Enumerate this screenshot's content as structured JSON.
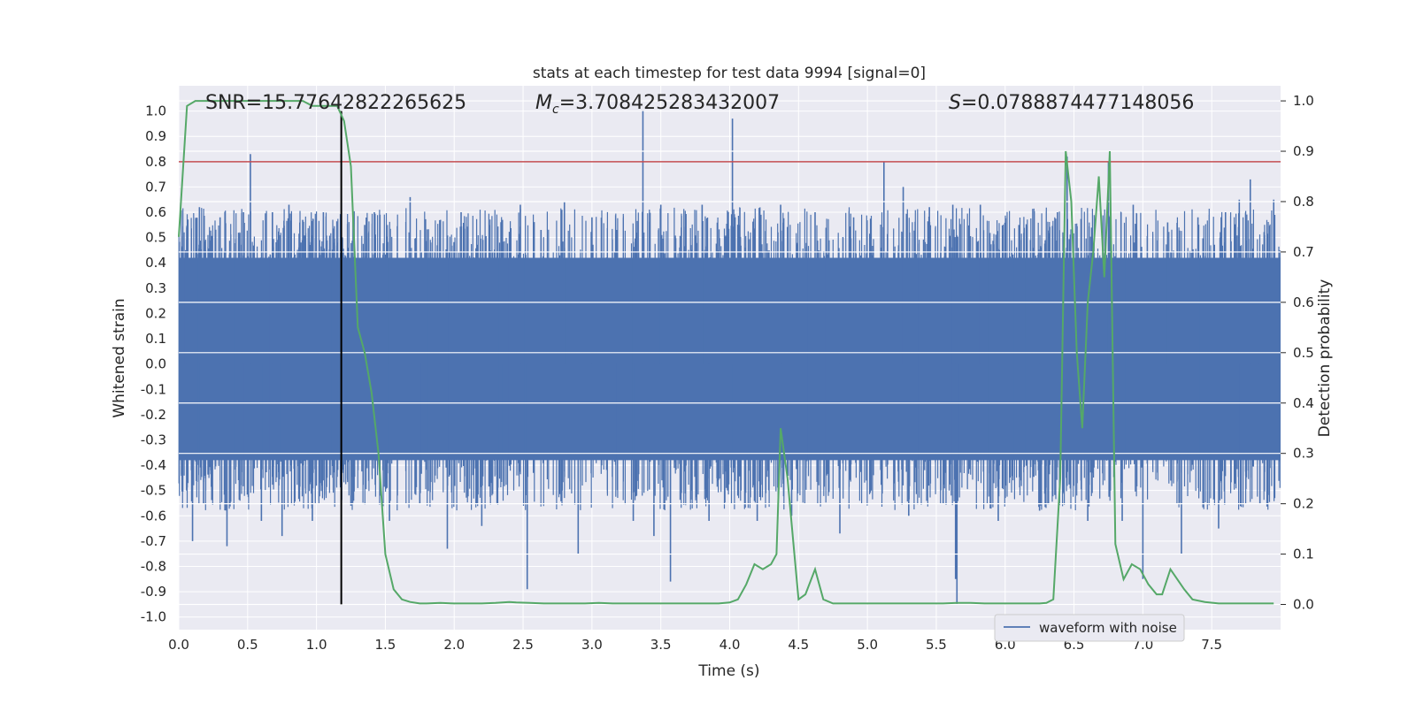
{
  "chart_data": {
    "type": "line",
    "title": "stats at each timestep for test data 9994 [signal=0]",
    "xlabel": "Time (s)",
    "ylabel_left": "Whitened strain",
    "ylabel_right": "Detection probability",
    "xlim": [
      0.0,
      8.0
    ],
    "ylim_left": [
      -1.05,
      1.1
    ],
    "ylim_right": [
      -0.05,
      1.03
    ],
    "x_ticks": [
      "0.0",
      "0.5",
      "1.0",
      "1.5",
      "2.0",
      "2.5",
      "3.0",
      "3.5",
      "4.0",
      "4.5",
      "5.0",
      "5.5",
      "6.0",
      "6.5",
      "7.0",
      "7.5"
    ],
    "y_ticks_left": [
      "1.0",
      "0.9",
      "0.8",
      "0.7",
      "0.6",
      "0.5",
      "0.4",
      "0.3",
      "0.2",
      "0.1",
      "0.0",
      "-0.1",
      "-0.2",
      "-0.3",
      "-0.4",
      "-0.5",
      "-0.6",
      "-0.7",
      "-0.8",
      "-0.9",
      "-1.0"
    ],
    "y_ticks_right": [
      "1.0",
      "0.9",
      "0.8",
      "0.7",
      "0.6",
      "0.5",
      "0.4",
      "0.3",
      "0.2",
      "0.1",
      "0.0"
    ],
    "grid": true,
    "legend_position": "bottom-right",
    "annotations": {
      "snr": "SNR=15.77642822265625",
      "mc_symbol": "M",
      "mc_sub": "c",
      "mc_value": "=3.708425283432007",
      "s_symbol": "S",
      "s_value": "=0.0788874477148056"
    },
    "threshold": {
      "y": 0.8,
      "color": "#c44e52"
    },
    "vertical_marker": {
      "x": 1.18,
      "y_from": -0.95,
      "y_to": 1.0,
      "color": "#000000"
    },
    "series": [
      {
        "name": "waveform with noise",
        "axis": "left",
        "color": "#4c72b0",
        "envelope_pos": 0.42,
        "envelope_neg": -0.38,
        "spikes": [
          [
            0.05,
            0.45
          ],
          [
            0.1,
            -0.7
          ],
          [
            0.15,
            0.62
          ],
          [
            0.18,
            -0.55
          ],
          [
            0.3,
            0.58
          ],
          [
            0.35,
            -0.72
          ],
          [
            0.47,
            0.6
          ],
          [
            0.52,
            0.83
          ],
          [
            0.6,
            -0.62
          ],
          [
            0.68,
            0.6
          ],
          [
            0.75,
            -0.68
          ],
          [
            0.8,
            0.63
          ],
          [
            0.9,
            0.57
          ],
          [
            0.97,
            -0.62
          ],
          [
            1.05,
            0.6
          ],
          [
            1.15,
            0.48
          ],
          [
            1.25,
            -0.56
          ],
          [
            1.35,
            0.55
          ],
          [
            1.42,
            0.6
          ],
          [
            1.53,
            -0.62
          ],
          [
            1.68,
            0.66
          ],
          [
            1.75,
            -0.55
          ],
          [
            1.9,
            0.57
          ],
          [
            1.95,
            -0.73
          ],
          [
            2.05,
            0.6
          ],
          [
            2.2,
            -0.64
          ],
          [
            2.35,
            0.57
          ],
          [
            2.48,
            0.63
          ],
          [
            2.53,
            -0.89
          ],
          [
            2.63,
            0.53
          ],
          [
            2.8,
            0.64
          ],
          [
            2.9,
            -0.75
          ],
          [
            3.0,
            0.58
          ],
          [
            3.18,
            0.53
          ],
          [
            3.3,
            -0.62
          ],
          [
            3.37,
            1.0
          ],
          [
            3.45,
            -0.68
          ],
          [
            3.5,
            0.63
          ],
          [
            3.57,
            -0.86
          ],
          [
            3.8,
            0.63
          ],
          [
            3.85,
            -0.62
          ],
          [
            4.02,
            0.97
          ],
          [
            4.2,
            -0.62
          ],
          [
            4.37,
            0.63
          ],
          [
            4.45,
            -0.6
          ],
          [
            4.62,
            0.6
          ],
          [
            4.8,
            -0.67
          ],
          [
            4.9,
            0.58
          ],
          [
            5.12,
            0.8
          ],
          [
            5.26,
            0.7
          ],
          [
            5.3,
            -0.6
          ],
          [
            5.45,
            0.62
          ],
          [
            5.55,
            -0.55
          ],
          [
            5.62,
            0.63
          ],
          [
            5.64,
            -0.85
          ],
          [
            5.65,
            -0.95
          ],
          [
            5.82,
            0.63
          ],
          [
            5.95,
            -0.62
          ],
          [
            6.1,
            0.55
          ],
          [
            6.25,
            -0.58
          ],
          [
            6.38,
            0.6
          ],
          [
            6.45,
            0.82
          ],
          [
            6.6,
            -0.62
          ],
          [
            6.75,
            0.8
          ],
          [
            6.85,
            -0.62
          ],
          [
            6.93,
            0.63
          ],
          [
            7.0,
            -0.85
          ],
          [
            7.18,
            0.56
          ],
          [
            7.28,
            -0.75
          ],
          [
            7.4,
            0.58
          ],
          [
            7.55,
            -0.65
          ],
          [
            7.6,
            0.6
          ],
          [
            7.7,
            0.65
          ],
          [
            7.78,
            0.73
          ],
          [
            7.85,
            -0.55
          ],
          [
            7.95,
            0.65
          ]
        ]
      },
      {
        "name": "",
        "axis": "right",
        "color": "#55a868",
        "x": [
          0.0,
          0.06,
          0.12,
          0.2,
          0.3,
          0.4,
          0.5,
          0.6,
          0.7,
          0.8,
          0.9,
          0.97,
          1.0,
          1.05,
          1.1,
          1.15,
          1.2,
          1.25,
          1.3,
          1.35,
          1.4,
          1.45,
          1.5,
          1.56,
          1.62,
          1.68,
          1.75,
          1.8,
          1.9,
          2.0,
          2.1,
          2.2,
          2.3,
          2.4,
          2.45,
          2.55,
          2.65,
          2.75,
          2.85,
          2.95,
          3.05,
          3.15,
          3.25,
          3.35,
          3.5,
          3.65,
          3.8,
          3.92,
          4.0,
          4.06,
          4.12,
          4.18,
          4.24,
          4.3,
          4.34,
          4.37,
          4.42,
          4.47,
          4.5,
          4.55,
          4.62,
          4.68,
          4.75,
          4.85,
          5.0,
          5.2,
          5.4,
          5.55,
          5.65,
          5.75,
          5.85,
          5.95,
          6.05,
          6.15,
          6.25,
          6.3,
          6.35,
          6.4,
          6.44,
          6.48,
          6.52,
          6.56,
          6.6,
          6.64,
          6.68,
          6.72,
          6.76,
          6.8,
          6.86,
          6.92,
          6.98,
          7.04,
          7.1,
          7.14,
          7.2,
          7.25,
          7.3,
          7.36,
          7.45,
          7.55,
          7.65,
          7.75,
          7.85,
          7.95
        ],
        "y": [
          0.73,
          0.99,
          1.0,
          1.0,
          1.0,
          1.0,
          1.0,
          1.0,
          1.0,
          1.0,
          1.0,
          0.99,
          0.99,
          0.99,
          0.99,
          0.99,
          0.96,
          0.87,
          0.55,
          0.5,
          0.42,
          0.3,
          0.1,
          0.03,
          0.01,
          0.005,
          0.002,
          0.002,
          0.003,
          0.002,
          0.002,
          0.002,
          0.003,
          0.005,
          0.004,
          0.003,
          0.002,
          0.002,
          0.002,
          0.002,
          0.003,
          0.002,
          0.002,
          0.002,
          0.002,
          0.002,
          0.002,
          0.002,
          0.004,
          0.01,
          0.04,
          0.08,
          0.07,
          0.08,
          0.1,
          0.35,
          0.25,
          0.1,
          0.01,
          0.02,
          0.07,
          0.01,
          0.002,
          0.002,
          0.002,
          0.002,
          0.002,
          0.002,
          0.003,
          0.003,
          0.002,
          0.002,
          0.002,
          0.002,
          0.002,
          0.003,
          0.01,
          0.25,
          0.9,
          0.8,
          0.5,
          0.35,
          0.6,
          0.7,
          0.85,
          0.65,
          0.9,
          0.12,
          0.05,
          0.08,
          0.07,
          0.04,
          0.02,
          0.02,
          0.07,
          0.05,
          0.03,
          0.01,
          0.005,
          0.002,
          0.002,
          0.002,
          0.002,
          0.002
        ]
      }
    ]
  }
}
